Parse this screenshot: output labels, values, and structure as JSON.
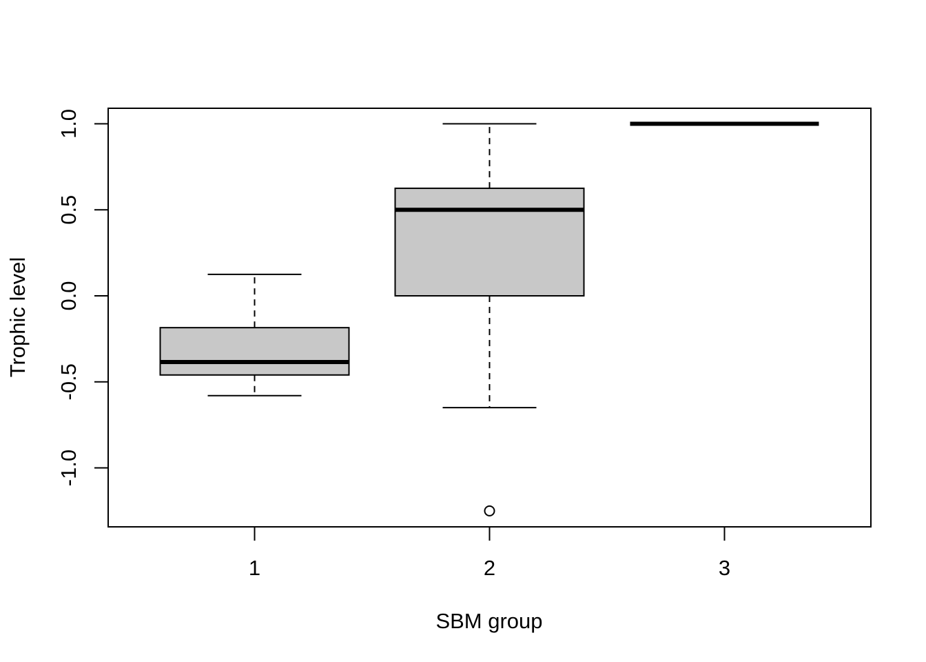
{
  "chart_data": {
    "type": "boxplot",
    "title": "",
    "xlabel": "SBM group",
    "ylabel": "Trophic level",
    "categories": [
      "1",
      "2",
      "3"
    ],
    "ylim": [
      -1.34,
      1.09
    ],
    "yticks": [
      -1.0,
      -0.5,
      0.0,
      0.5,
      1.0
    ],
    "ytick_labels": [
      "-1.0",
      "-0.5",
      "0.0",
      "0.5",
      "1.0"
    ],
    "boxes": [
      {
        "group": "1",
        "whisker_low": -0.58,
        "q1": -0.46,
        "median": -0.385,
        "q3": -0.185,
        "whisker_high": 0.125,
        "outliers": []
      },
      {
        "group": "2",
        "whisker_low": -0.65,
        "q1": 0.0,
        "median": 0.5,
        "q3": 0.625,
        "whisker_high": 1.0,
        "outliers": [
          -1.25
        ]
      },
      {
        "group": "3",
        "whisker_low": 1.0,
        "q1": 1.0,
        "median": 1.0,
        "q3": 1.0,
        "whisker_high": 1.0,
        "outliers": []
      }
    ],
    "colors": {
      "box_fill": "#c8c8c8",
      "line": "#000000",
      "background": "#ffffff"
    },
    "grid": false,
    "legend": "none"
  }
}
